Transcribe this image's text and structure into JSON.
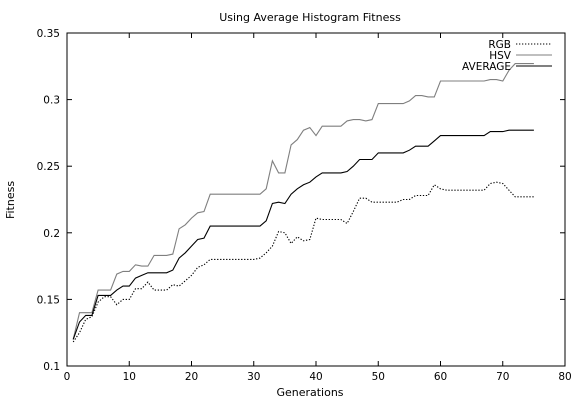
{
  "chart_data": {
    "type": "line",
    "title": "Using Average Histogram Fitness",
    "xlabel": "Generations",
    "ylabel": "Fitness",
    "xlim": [
      0,
      80
    ],
    "ylim": [
      0.1,
      0.35
    ],
    "xticks": [
      "0",
      "10",
      "20",
      "30",
      "40",
      "50",
      "60",
      "70",
      "80"
    ],
    "yticks": [
      "0.1",
      "0.15",
      "0.2",
      "0.25",
      "0.3",
      "0.35"
    ],
    "grid": false,
    "legend_position": "top-right",
    "series": [
      {
        "name": "RGB",
        "color": "#000000",
        "style": "dotted",
        "points": [
          [
            1,
            0.118
          ],
          [
            2,
            0.125
          ],
          [
            3,
            0.135
          ],
          [
            4,
            0.137
          ],
          [
            5,
            0.148
          ],
          [
            6,
            0.152
          ],
          [
            7,
            0.152
          ],
          [
            8,
            0.146
          ],
          [
            9,
            0.15
          ],
          [
            10,
            0.15
          ],
          [
            11,
            0.158
          ],
          [
            12,
            0.158
          ],
          [
            13,
            0.163
          ],
          [
            14,
            0.157
          ],
          [
            15,
            0.157
          ],
          [
            16,
            0.157
          ],
          [
            17,
            0.161
          ],
          [
            18,
            0.16
          ],
          [
            19,
            0.164
          ],
          [
            20,
            0.168
          ],
          [
            21,
            0.174
          ],
          [
            22,
            0.176
          ],
          [
            23,
            0.18
          ],
          [
            24,
            0.18
          ],
          [
            25,
            0.18
          ],
          [
            26,
            0.18
          ],
          [
            27,
            0.18
          ],
          [
            28,
            0.18
          ],
          [
            29,
            0.18
          ],
          [
            30,
            0.18
          ],
          [
            31,
            0.181
          ],
          [
            32,
            0.185
          ],
          [
            33,
            0.19
          ],
          [
            34,
            0.201
          ],
          [
            35,
            0.2
          ],
          [
            36,
            0.192
          ],
          [
            37,
            0.197
          ],
          [
            38,
            0.194
          ],
          [
            39,
            0.195
          ],
          [
            40,
            0.211
          ],
          [
            41,
            0.21
          ],
          [
            42,
            0.21
          ],
          [
            43,
            0.21
          ],
          [
            44,
            0.21
          ],
          [
            45,
            0.207
          ],
          [
            46,
            0.216
          ],
          [
            47,
            0.226
          ],
          [
            48,
            0.226
          ],
          [
            49,
            0.223
          ],
          [
            50,
            0.223
          ],
          [
            51,
            0.223
          ],
          [
            52,
            0.223
          ],
          [
            53,
            0.223
          ],
          [
            54,
            0.225
          ],
          [
            55,
            0.225
          ],
          [
            56,
            0.228
          ],
          [
            57,
            0.228
          ],
          [
            58,
            0.228
          ],
          [
            59,
            0.236
          ],
          [
            60,
            0.233
          ],
          [
            61,
            0.232
          ],
          [
            62,
            0.232
          ],
          [
            63,
            0.232
          ],
          [
            64,
            0.232
          ],
          [
            65,
            0.232
          ],
          [
            66,
            0.232
          ],
          [
            67,
            0.232
          ],
          [
            68,
            0.237
          ],
          [
            69,
            0.238
          ],
          [
            70,
            0.237
          ],
          [
            71,
            0.232
          ],
          [
            72,
            0.227
          ],
          [
            73,
            0.227
          ],
          [
            74,
            0.227
          ],
          [
            75,
            0.227
          ]
        ]
      },
      {
        "name": "HSV",
        "color": "#7f7f7f",
        "style": "solid",
        "points": [
          [
            1,
            0.12
          ],
          [
            2,
            0.14
          ],
          [
            3,
            0.14
          ],
          [
            4,
            0.14
          ],
          [
            5,
            0.157
          ],
          [
            6,
            0.157
          ],
          [
            7,
            0.157
          ],
          [
            8,
            0.169
          ],
          [
            9,
            0.171
          ],
          [
            10,
            0.171
          ],
          [
            11,
            0.176
          ],
          [
            12,
            0.175
          ],
          [
            13,
            0.175
          ],
          [
            14,
            0.183
          ],
          [
            15,
            0.183
          ],
          [
            16,
            0.183
          ],
          [
            17,
            0.184
          ],
          [
            18,
            0.203
          ],
          [
            19,
            0.206
          ],
          [
            20,
            0.211
          ],
          [
            21,
            0.215
          ],
          [
            22,
            0.216
          ],
          [
            23,
            0.229
          ],
          [
            24,
            0.229
          ],
          [
            25,
            0.229
          ],
          [
            26,
            0.229
          ],
          [
            27,
            0.229
          ],
          [
            28,
            0.229
          ],
          [
            29,
            0.229
          ],
          [
            30,
            0.229
          ],
          [
            31,
            0.229
          ],
          [
            32,
            0.233
          ],
          [
            33,
            0.254
          ],
          [
            34,
            0.245
          ],
          [
            35,
            0.245
          ],
          [
            36,
            0.266
          ],
          [
            37,
            0.27
          ],
          [
            38,
            0.277
          ],
          [
            39,
            0.279
          ],
          [
            40,
            0.273
          ],
          [
            41,
            0.28
          ],
          [
            42,
            0.28
          ],
          [
            43,
            0.28
          ],
          [
            44,
            0.28
          ],
          [
            45,
            0.284
          ],
          [
            46,
            0.285
          ],
          [
            47,
            0.285
          ],
          [
            48,
            0.284
          ],
          [
            49,
            0.285
          ],
          [
            50,
            0.297
          ],
          [
            51,
            0.297
          ],
          [
            52,
            0.297
          ],
          [
            53,
            0.297
          ],
          [
            54,
            0.297
          ],
          [
            55,
            0.299
          ],
          [
            56,
            0.303
          ],
          [
            57,
            0.303
          ],
          [
            58,
            0.302
          ],
          [
            59,
            0.302
          ],
          [
            60,
            0.314
          ],
          [
            61,
            0.314
          ],
          [
            62,
            0.314
          ],
          [
            63,
            0.314
          ],
          [
            64,
            0.314
          ],
          [
            65,
            0.314
          ],
          [
            66,
            0.314
          ],
          [
            67,
            0.314
          ],
          [
            68,
            0.315
          ],
          [
            69,
            0.315
          ],
          [
            70,
            0.314
          ],
          [
            71,
            0.322
          ],
          [
            72,
            0.327
          ],
          [
            73,
            0.327
          ],
          [
            74,
            0.327
          ],
          [
            75,
            0.327
          ]
        ]
      },
      {
        "name": "AVERAGE",
        "color": "#000000",
        "style": "solid",
        "points": [
          [
            1,
            0.12
          ],
          [
            2,
            0.133
          ],
          [
            3,
            0.138
          ],
          [
            4,
            0.138
          ],
          [
            5,
            0.153
          ],
          [
            6,
            0.153
          ],
          [
            7,
            0.153
          ],
          [
            8,
            0.157
          ],
          [
            9,
            0.16
          ],
          [
            10,
            0.16
          ],
          [
            11,
            0.166
          ],
          [
            12,
            0.168
          ],
          [
            13,
            0.17
          ],
          [
            14,
            0.17
          ],
          [
            15,
            0.17
          ],
          [
            16,
            0.17
          ],
          [
            17,
            0.172
          ],
          [
            18,
            0.181
          ],
          [
            19,
            0.185
          ],
          [
            20,
            0.19
          ],
          [
            21,
            0.195
          ],
          [
            22,
            0.196
          ],
          [
            23,
            0.205
          ],
          [
            24,
            0.205
          ],
          [
            25,
            0.205
          ],
          [
            26,
            0.205
          ],
          [
            27,
            0.205
          ],
          [
            28,
            0.205
          ],
          [
            29,
            0.205
          ],
          [
            30,
            0.205
          ],
          [
            31,
            0.205
          ],
          [
            32,
            0.209
          ],
          [
            33,
            0.222
          ],
          [
            34,
            0.223
          ],
          [
            35,
            0.222
          ],
          [
            36,
            0.229
          ],
          [
            37,
            0.233
          ],
          [
            38,
            0.236
          ],
          [
            39,
            0.238
          ],
          [
            40,
            0.242
          ],
          [
            41,
            0.245
          ],
          [
            42,
            0.245
          ],
          [
            43,
            0.245
          ],
          [
            44,
            0.245
          ],
          [
            45,
            0.246
          ],
          [
            46,
            0.25
          ],
          [
            47,
            0.255
          ],
          [
            48,
            0.255
          ],
          [
            49,
            0.255
          ],
          [
            50,
            0.26
          ],
          [
            51,
            0.26
          ],
          [
            52,
            0.26
          ],
          [
            53,
            0.26
          ],
          [
            54,
            0.26
          ],
          [
            55,
            0.262
          ],
          [
            56,
            0.265
          ],
          [
            57,
            0.265
          ],
          [
            58,
            0.265
          ],
          [
            59,
            0.269
          ],
          [
            60,
            0.273
          ],
          [
            61,
            0.273
          ],
          [
            62,
            0.273
          ],
          [
            63,
            0.273
          ],
          [
            64,
            0.273
          ],
          [
            65,
            0.273
          ],
          [
            66,
            0.273
          ],
          [
            67,
            0.273
          ],
          [
            68,
            0.276
          ],
          [
            69,
            0.276
          ],
          [
            70,
            0.276
          ],
          [
            71,
            0.277
          ],
          [
            72,
            0.277
          ],
          [
            73,
            0.277
          ],
          [
            74,
            0.277
          ],
          [
            75,
            0.277
          ]
        ]
      }
    ]
  }
}
